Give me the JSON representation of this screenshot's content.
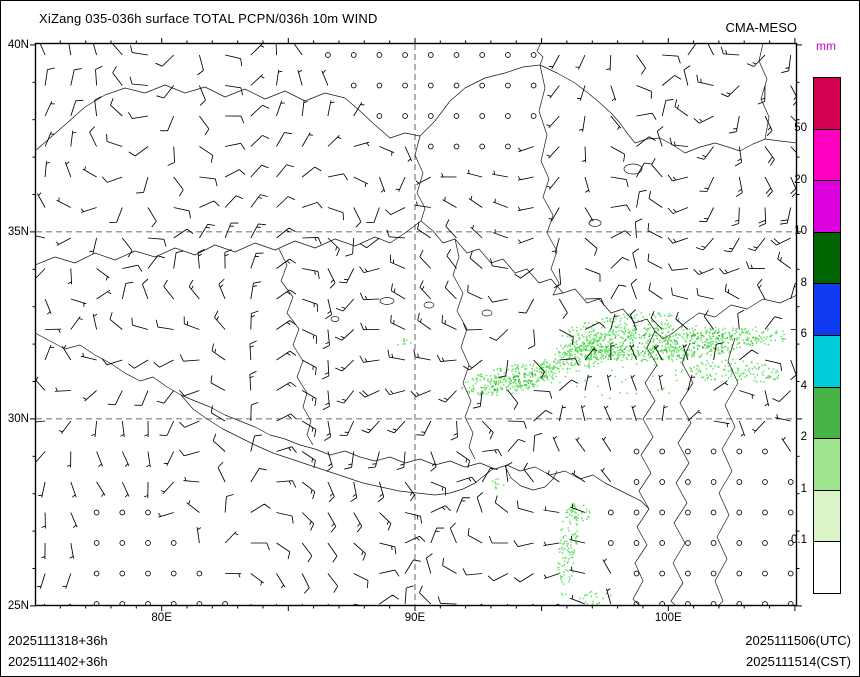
{
  "header": {
    "title": "XiZang 035-036h surface TOTAL PCPN/036h 10m WIND",
    "model_name": "CMA-MESO"
  },
  "map": {
    "lat_axis": [
      {
        "text": "40N",
        "lat": 40
      },
      {
        "text": "35N",
        "lat": 35
      },
      {
        "text": "30N",
        "lat": 30
      },
      {
        "text": "25N",
        "lat": 25
      }
    ],
    "lon_axis": [
      {
        "text": "80E",
        "lon": 80
      },
      {
        "text": "90E",
        "lon": 90
      },
      {
        "text": "100E",
        "lon": 100
      }
    ],
    "gridline_lats": [
      35,
      30
    ],
    "gridline_lons": [
      90
    ]
  },
  "colorbar": {
    "unit": "mm",
    "unit_color": "#cc00cc",
    "boundary_labels": [
      "50",
      "20",
      "10",
      "8",
      "6",
      "4",
      "2",
      "1",
      "0.1"
    ],
    "segment_colors_top_to_bottom": [
      "#d40050",
      "#ff00c0",
      "#dc00dc",
      "#006400",
      "#0f3cf0",
      "#00cdd8",
      "#46b446",
      "#a0e690",
      "#dcf5c8",
      "#ffffff"
    ]
  },
  "wind_field": {
    "cols": 30,
    "rows": 19,
    "lon_start": 75.4,
    "lon_step": 1.015,
    "lat_start": 39.73,
    "lat_step": 0.8155,
    "shaft_len": 16,
    "barb_color": "#000000"
  },
  "precip": {
    "seed": 7,
    "colors": {
      "light": "#64e164",
      "mid": "#2db82d"
    },
    "clusters": [
      {
        "lon": 99.67,
        "lat": 32.03,
        "dlon": 4.15,
        "dlat": 0.45,
        "n": 650,
        "rot": -3,
        "shade": "light"
      },
      {
        "lon": 98.1,
        "lat": 32.48,
        "dlon": 2.37,
        "dlat": 0.32,
        "n": 170,
        "rot": -8,
        "shade": "light"
      },
      {
        "lon": 96.32,
        "lat": 31.6,
        "dlon": 1.5,
        "dlat": 0.32,
        "n": 160,
        "rot": -14,
        "shade": "light"
      },
      {
        "lon": 93.75,
        "lat": 31.07,
        "dlon": 1.97,
        "dlat": 0.37,
        "n": 260,
        "rot": -10,
        "shade": "light"
      },
      {
        "lon": 99.87,
        "lat": 32.0,
        "dlon": 3.63,
        "dlat": 0.32,
        "n": 100,
        "rot": -3,
        "shade": "mid"
      },
      {
        "lon": 93.95,
        "lat": 31.01,
        "dlon": 1.26,
        "dlat": 0.21,
        "n": 45,
        "rot": -10,
        "shade": "mid"
      },
      {
        "lon": 102.63,
        "lat": 31.28,
        "dlon": 1.82,
        "dlat": 0.32,
        "n": 130,
        "rot": 4,
        "shade": "light"
      },
      {
        "lon": 103.5,
        "lat": 32.22,
        "dlon": 1.18,
        "dlat": 0.27,
        "n": 55,
        "rot": 0,
        "shade": "light"
      },
      {
        "lon": 98.49,
        "lat": 31.23,
        "dlon": 3.36,
        "dlat": 0.75,
        "n": 60,
        "rot": 0,
        "shade": "light"
      },
      {
        "lon": 96.0,
        "lat": 26.55,
        "dlon": 0.36,
        "dlat": 1.28,
        "n": 110,
        "rot": 6,
        "shade": "light"
      },
      {
        "lon": 96.52,
        "lat": 27.54,
        "dlon": 0.55,
        "dlat": 0.27,
        "n": 28,
        "rot": 0,
        "shade": "light"
      },
      {
        "lon": 93.24,
        "lat": 28.28,
        "dlon": 0.32,
        "dlat": 0.16,
        "n": 10,
        "rot": 0,
        "shade": "light"
      },
      {
        "lon": 97.11,
        "lat": 25.21,
        "dlon": 0.79,
        "dlat": 0.21,
        "n": 25,
        "rot": 0,
        "shade": "light"
      },
      {
        "lon": 89.53,
        "lat": 32.03,
        "dlon": 0.28,
        "dlat": 0.13,
        "n": 8,
        "rot": 0,
        "shade": "light"
      }
    ]
  },
  "footer": {
    "left1": "2025111318+36h",
    "left2": "2025111402+36h",
    "right1": "2025111506(UTC)",
    "right2": "2025111514(CST)"
  }
}
